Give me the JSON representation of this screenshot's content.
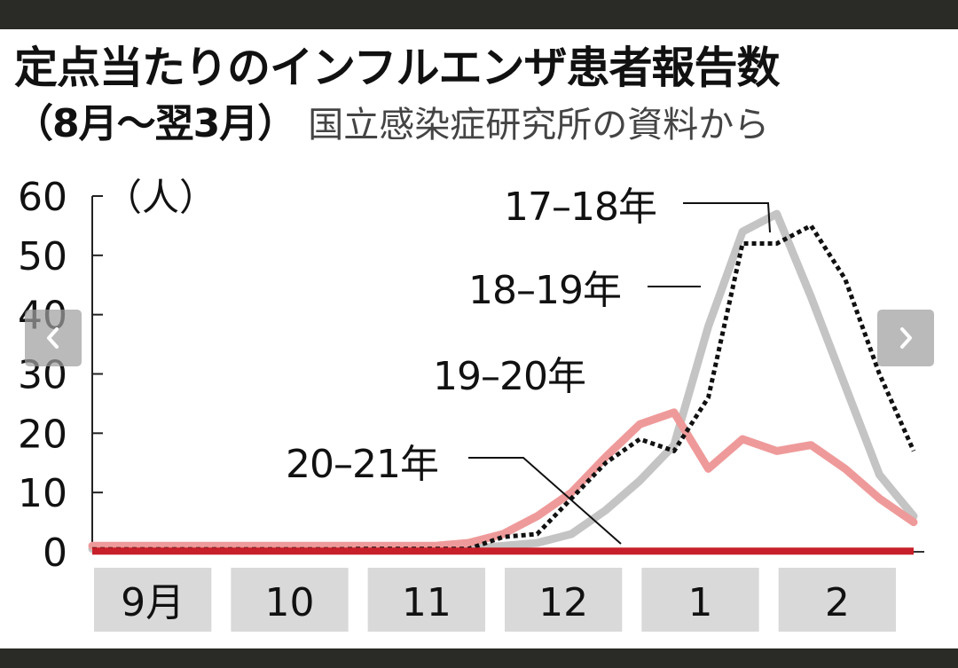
{
  "header": {
    "title": "定点当たりのインフルエンザ患者報告数",
    "period": "（8月～翌3月）",
    "source": "国立感染症研究所の資料から"
  },
  "navigation": {
    "prev_icon": "chevron-left-icon",
    "next_icon": "chevron-right-icon"
  },
  "chart_data": {
    "type": "line",
    "y_unit": "（人）",
    "ylim": [
      0,
      60
    ],
    "y_ticks": [
      "0",
      "10",
      "20",
      "30",
      "40",
      "50",
      "60"
    ],
    "x_labels": [
      "9月",
      "10",
      "11",
      "12",
      "1",
      "2"
    ],
    "x": [
      0,
      0.25,
      0.5,
      0.75,
      1,
      1.25,
      1.5,
      1.75,
      2,
      2.25,
      2.5,
      2.75,
      3,
      3.25,
      3.5,
      3.75,
      4,
      4.25,
      4.5,
      4.75,
      5,
      5.25,
      5.5,
      5.75,
      6
    ],
    "series": [
      {
        "name": "17–18年",
        "style": "solid",
        "color": "#c4c4c4",
        "values": [
          0.5,
          0.5,
          0.5,
          0.5,
          0.5,
          0.5,
          0.5,
          0.5,
          0.5,
          0.5,
          0.5,
          0.5,
          1,
          1.5,
          3,
          7,
          12,
          18,
          38,
          54,
          57,
          43,
          28,
          13,
          6
        ]
      },
      {
        "name": "18–19年",
        "style": "dotted",
        "color": "#111111",
        "values": [
          0.4,
          0.4,
          0.4,
          0.4,
          0.4,
          0.4,
          0.4,
          0.4,
          0.5,
          0.5,
          0.5,
          0.5,
          2.5,
          3,
          9,
          15,
          19,
          17,
          26,
          52,
          52,
          55,
          46,
          30,
          17
        ]
      },
      {
        "name": "19–20年",
        "style": "solid",
        "color": "#ef9a9a",
        "values": [
          1,
          1,
          1,
          1,
          1,
          1,
          1,
          1,
          1,
          1,
          1,
          1.5,
          3,
          6,
          10,
          16,
          21.5,
          23.5,
          14,
          19,
          17,
          18,
          14,
          9,
          5
        ]
      },
      {
        "name": "20–21年",
        "style": "solid",
        "color": "#c8202a",
        "values": [
          0.1,
          0.1,
          0.1,
          0.1,
          0.1,
          0.1,
          0.1,
          0.1,
          0.1,
          0.1,
          0.1,
          0.1,
          0.1,
          0.1,
          0.1,
          0.1,
          0.1,
          0.1,
          0.1,
          0.1,
          0.1,
          0.1,
          0.1,
          0.1,
          0.1
        ]
      }
    ]
  }
}
